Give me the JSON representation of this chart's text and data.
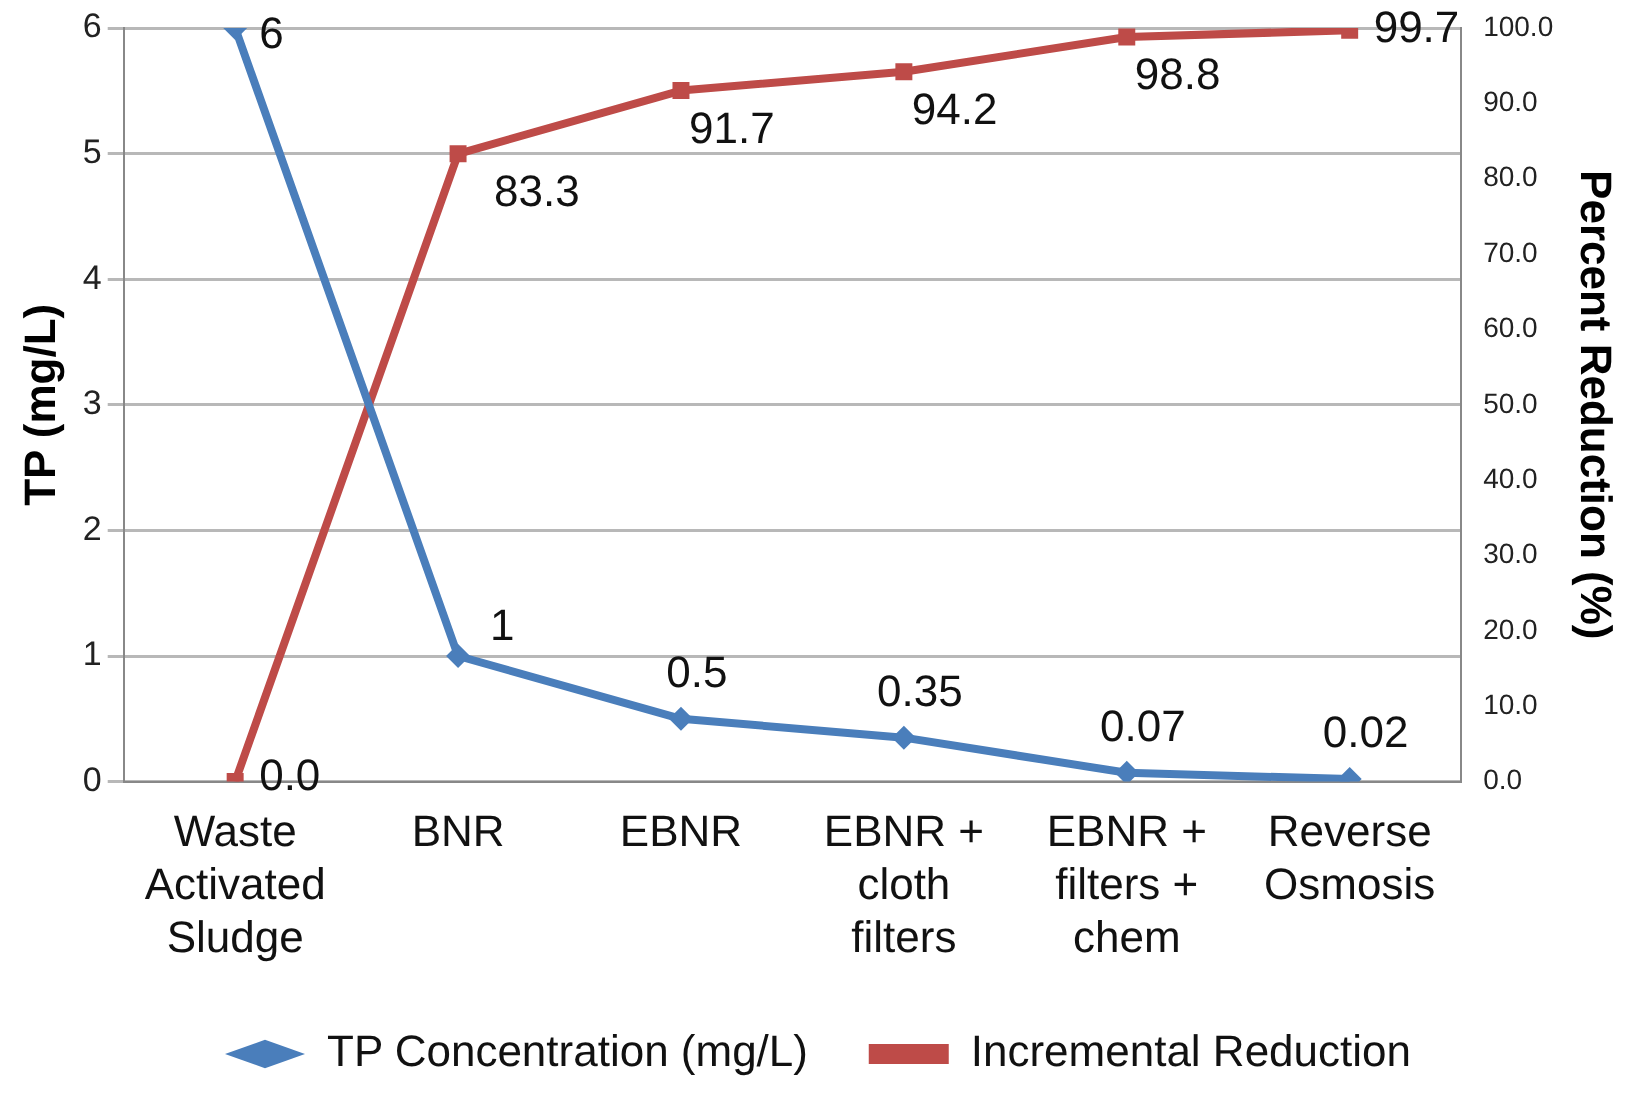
{
  "chart_data": {
    "type": "line",
    "ylabel": "TP (mg/L)",
    "y2label": "Percent Reduction (%)",
    "categories": [
      "Waste Activated Sludge",
      "BNR",
      "EBNR",
      "EBNR + cloth filters",
      "EBNR + filters + chem",
      "Reverse Osmosis"
    ],
    "series": [
      {
        "name": "TP Concentration (mg/L)",
        "color": "#4a7ebb",
        "marker": "diamond",
        "values": [
          6,
          1,
          0.5,
          0.35,
          0.07,
          0.02
        ],
        "value_labels": [
          "6",
          "1",
          "0.5",
          "0.35",
          "0.07",
          "0.02"
        ]
      },
      {
        "name": "Incremental Reduction",
        "color": "#be4b48",
        "marker": "square",
        "axis": "y2",
        "values": [
          0.0,
          83.3,
          91.7,
          94.2,
          98.8,
          99.7
        ],
        "value_labels": [
          "0.0",
          "83.3",
          "91.7",
          "94.2",
          "98.8",
          "99.7"
        ]
      }
    ],
    "ylim": [
      0,
      6
    ],
    "yticks": [
      0,
      1,
      2,
      3,
      4,
      5,
      6
    ],
    "y2lim": [
      0,
      100
    ],
    "y2ticks": [
      {
        "value": 0,
        "label": "0.0"
      },
      {
        "value": 10,
        "label": "10.0"
      },
      {
        "value": 20,
        "label": "20.0"
      },
      {
        "value": 30,
        "label": "30.0"
      },
      {
        "value": 40,
        "label": "40.0"
      },
      {
        "value": 50,
        "label": "50.0"
      },
      {
        "value": 60,
        "label": "60.0"
      },
      {
        "value": 70,
        "label": "70.0"
      },
      {
        "value": 80,
        "label": "80.0"
      },
      {
        "value": 90,
        "label": "90.0"
      },
      {
        "value": 100,
        "label": "100.0"
      }
    ],
    "grid": "y",
    "legend": "bottom",
    "line_style": "solid"
  }
}
